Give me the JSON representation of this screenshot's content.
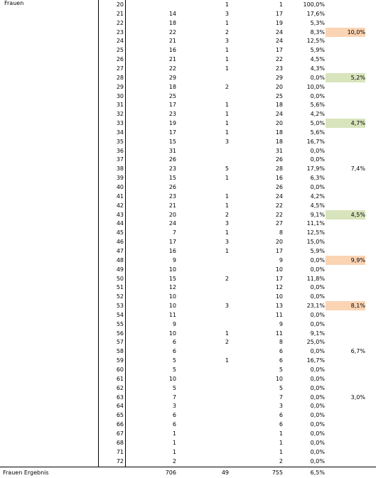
{
  "group_label": "Frauen",
  "rows": [
    {
      "week": "20",
      "a": "",
      "b": "1",
      "c": "1",
      "pct": "100,0%",
      "hl": "",
      "hl_color": ""
    },
    {
      "week": "21",
      "a": "14",
      "b": "3",
      "c": "17",
      "pct": "17,6%",
      "hl": "",
      "hl_color": ""
    },
    {
      "week": "22",
      "a": "18",
      "b": "1",
      "c": "19",
      "pct": "5,3%",
      "hl": "",
      "hl_color": ""
    },
    {
      "week": "23",
      "a": "22",
      "b": "2",
      "c": "24",
      "pct": "8,3%",
      "hl": "10,0%",
      "hl_color": "orange"
    },
    {
      "week": "24",
      "a": "21",
      "b": "3",
      "c": "24",
      "pct": "12,5%",
      "hl": "",
      "hl_color": ""
    },
    {
      "week": "25",
      "a": "16",
      "b": "1",
      "c": "17",
      "pct": "5,9%",
      "hl": "",
      "hl_color": ""
    },
    {
      "week": "26",
      "a": "21",
      "b": "1",
      "c": "22",
      "pct": "4,5%",
      "hl": "",
      "hl_color": ""
    },
    {
      "week": "27",
      "a": "22",
      "b": "1",
      "c": "23",
      "pct": "4,3%",
      "hl": "",
      "hl_color": ""
    },
    {
      "week": "28",
      "a": "29",
      "b": "",
      "c": "29",
      "pct": "0,0%",
      "hl": "5,2%",
      "hl_color": "green"
    },
    {
      "week": "29",
      "a": "18",
      "b": "2",
      "c": "20",
      "pct": "10,0%",
      "hl": "",
      "hl_color": ""
    },
    {
      "week": "30",
      "a": "25",
      "b": "",
      "c": "25",
      "pct": "0,0%",
      "hl": "",
      "hl_color": ""
    },
    {
      "week": "31",
      "a": "17",
      "b": "1",
      "c": "18",
      "pct": "5,6%",
      "hl": "",
      "hl_color": ""
    },
    {
      "week": "32",
      "a": "23",
      "b": "1",
      "c": "24",
      "pct": "4,2%",
      "hl": "",
      "hl_color": ""
    },
    {
      "week": "33",
      "a": "19",
      "b": "1",
      "c": "20",
      "pct": "5,0%",
      "hl": "4,7%",
      "hl_color": "green"
    },
    {
      "week": "34",
      "a": "17",
      "b": "1",
      "c": "18",
      "pct": "5,6%",
      "hl": "",
      "hl_color": ""
    },
    {
      "week": "35",
      "a": "15",
      "b": "3",
      "c": "18",
      "pct": "16,7%",
      "hl": "",
      "hl_color": ""
    },
    {
      "week": "36",
      "a": "31",
      "b": "",
      "c": "31",
      "pct": "0,0%",
      "hl": "",
      "hl_color": ""
    },
    {
      "week": "37",
      "a": "26",
      "b": "",
      "c": "26",
      "pct": "0,0%",
      "hl": "",
      "hl_color": ""
    },
    {
      "week": "38",
      "a": "23",
      "b": "5",
      "c": "28",
      "pct": "17,9%",
      "hl": "7,4%",
      "hl_color": ""
    },
    {
      "week": "39",
      "a": "15",
      "b": "1",
      "c": "16",
      "pct": "6,3%",
      "hl": "",
      "hl_color": ""
    },
    {
      "week": "40",
      "a": "26",
      "b": "",
      "c": "26",
      "pct": "0,0%",
      "hl": "",
      "hl_color": ""
    },
    {
      "week": "41",
      "a": "23",
      "b": "1",
      "c": "24",
      "pct": "4,2%",
      "hl": "",
      "hl_color": ""
    },
    {
      "week": "42",
      "a": "21",
      "b": "1",
      "c": "22",
      "pct": "4,5%",
      "hl": "",
      "hl_color": ""
    },
    {
      "week": "43",
      "a": "20",
      "b": "2",
      "c": "22",
      "pct": "9,1%",
      "hl": "4,5%",
      "hl_color": "green"
    },
    {
      "week": "44",
      "a": "24",
      "b": "3",
      "c": "27",
      "pct": "11,1%",
      "hl": "",
      "hl_color": ""
    },
    {
      "week": "45",
      "a": "7",
      "b": "1",
      "c": "8",
      "pct": "12,5%",
      "hl": "",
      "hl_color": ""
    },
    {
      "week": "46",
      "a": "17",
      "b": "3",
      "c": "20",
      "pct": "15,0%",
      "hl": "",
      "hl_color": ""
    },
    {
      "week": "47",
      "a": "16",
      "b": "1",
      "c": "17",
      "pct": "5,9%",
      "hl": "",
      "hl_color": ""
    },
    {
      "week": "48",
      "a": "9",
      "b": "",
      "c": "9",
      "pct": "0,0%",
      "hl": "9,9%",
      "hl_color": "orange"
    },
    {
      "week": "49",
      "a": "10",
      "b": "",
      "c": "10",
      "pct": "0,0%",
      "hl": "",
      "hl_color": ""
    },
    {
      "week": "50",
      "a": "15",
      "b": "2",
      "c": "17",
      "pct": "11,8%",
      "hl": "",
      "hl_color": ""
    },
    {
      "week": "51",
      "a": "12",
      "b": "",
      "c": "12",
      "pct": "0,0%",
      "hl": "",
      "hl_color": ""
    },
    {
      "week": "52",
      "a": "10",
      "b": "",
      "c": "10",
      "pct": "0,0%",
      "hl": "",
      "hl_color": ""
    },
    {
      "week": "53",
      "a": "10",
      "b": "3",
      "c": "13",
      "pct": "23,1%",
      "hl": "8,1%",
      "hl_color": "orange"
    },
    {
      "week": "54",
      "a": "11",
      "b": "",
      "c": "11",
      "pct": "0,0%",
      "hl": "",
      "hl_color": ""
    },
    {
      "week": "55",
      "a": "9",
      "b": "",
      "c": "9",
      "pct": "0,0%",
      "hl": "",
      "hl_color": ""
    },
    {
      "week": "56",
      "a": "10",
      "b": "1",
      "c": "11",
      "pct": "9,1%",
      "hl": "",
      "hl_color": ""
    },
    {
      "week": "57",
      "a": "6",
      "b": "2",
      "c": "8",
      "pct": "25,0%",
      "hl": "",
      "hl_color": ""
    },
    {
      "week": "58",
      "a": "6",
      "b": "",
      "c": "6",
      "pct": "0,0%",
      "hl": "6,7%",
      "hl_color": ""
    },
    {
      "week": "59",
      "a": "5",
      "b": "1",
      "c": "6",
      "pct": "16,7%",
      "hl": "",
      "hl_color": ""
    },
    {
      "week": "60",
      "a": "5",
      "b": "",
      "c": "5",
      "pct": "0,0%",
      "hl": "",
      "hl_color": ""
    },
    {
      "week": "61",
      "a": "10",
      "b": "",
      "c": "10",
      "pct": "0,0%",
      "hl": "",
      "hl_color": ""
    },
    {
      "week": "62",
      "a": "5",
      "b": "",
      "c": "5",
      "pct": "0,0%",
      "hl": "",
      "hl_color": ""
    },
    {
      "week": "63",
      "a": "7",
      "b": "",
      "c": "7",
      "pct": "0,0%",
      "hl": "3,0%",
      "hl_color": ""
    },
    {
      "week": "64",
      "a": "3",
      "b": "",
      "c": "3",
      "pct": "0,0%",
      "hl": "",
      "hl_color": ""
    },
    {
      "week": "65",
      "a": "6",
      "b": "",
      "c": "6",
      "pct": "0,0%",
      "hl": "",
      "hl_color": ""
    },
    {
      "week": "66",
      "a": "6",
      "b": "",
      "c": "6",
      "pct": "0,0%",
      "hl": "",
      "hl_color": ""
    },
    {
      "week": "67",
      "a": "1",
      "b": "",
      "c": "1",
      "pct": "0,0%",
      "hl": "",
      "hl_color": ""
    },
    {
      "week": "68",
      "a": "1",
      "b": "",
      "c": "1",
      "pct": "0,0%",
      "hl": "",
      "hl_color": ""
    },
    {
      "week": "71",
      "a": "1",
      "b": "",
      "c": "1",
      "pct": "0,0%",
      "hl": "",
      "hl_color": ""
    },
    {
      "week": "72",
      "a": "2",
      "b": "",
      "c": "2",
      "pct": "0,0%",
      "hl": "",
      "hl_color": ""
    }
  ],
  "total": {
    "label": "Frauen Ergebnis",
    "a": "706",
    "b": "49",
    "c": "755",
    "pct": "6,5%"
  },
  "colors": {
    "orange": "#fbd4b4",
    "green": "#d8e4bc"
  }
}
